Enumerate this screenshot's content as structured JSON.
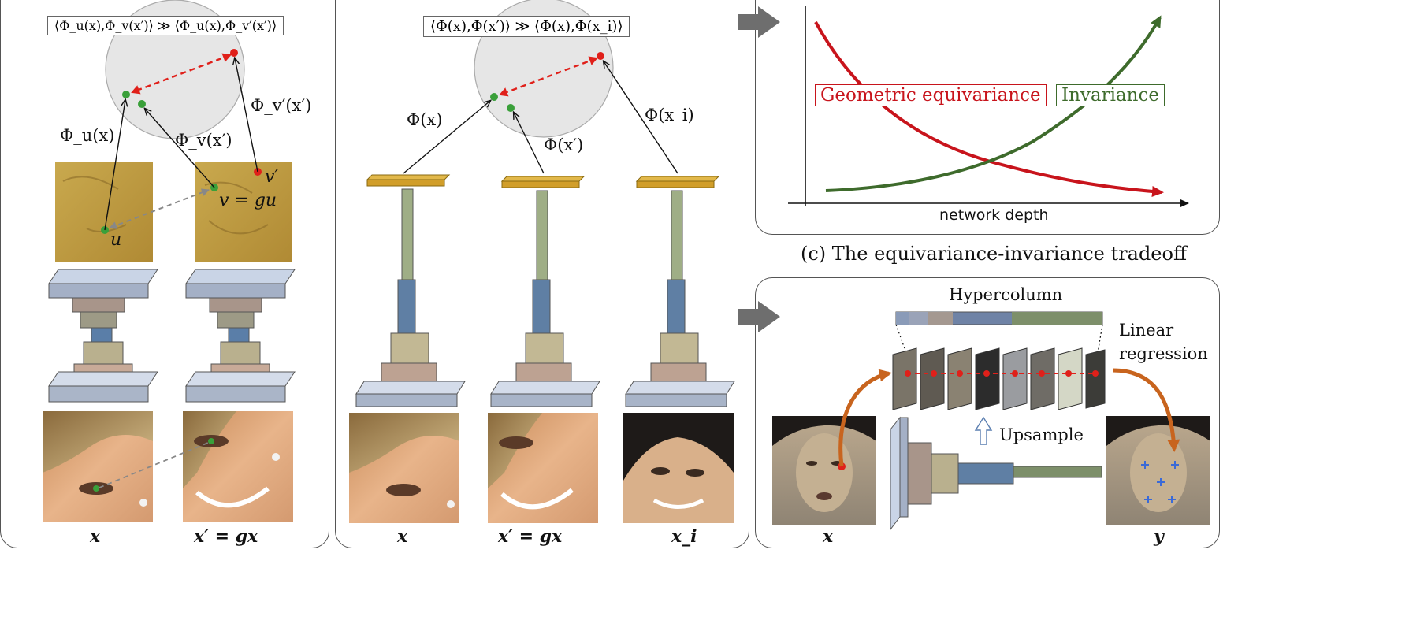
{
  "panel_a": {
    "equation": "⟨Φ_u(x),Φ_v(x′)⟩ ≫ ⟨Φ_u(x),Φ_v′(x′)⟩",
    "feature_labels": {
      "phi_u_x": "Φ_u(x)",
      "phi_v_xp": "Φ_v(x′)",
      "phi_vp_xp": "Φ_v′(x′)"
    },
    "point_labels": {
      "u": "u",
      "v": "v = gu",
      "vp": "v′"
    },
    "image_labels": {
      "left": "x",
      "right": "x′ = gx"
    }
  },
  "panel_b": {
    "equation": "⟨Φ(x),Φ(x′)⟩ ≫ ⟨Φ(x),Φ(x_i)⟩",
    "feature_labels": {
      "phi_x": "Φ(x)",
      "phi_xp": "Φ(x′)",
      "phi_xi": "Φ(x_i)"
    },
    "image_labels": {
      "left": "x",
      "middle": "x′ = gx",
      "right": "x_i"
    }
  },
  "panel_c": {
    "caption": "(c) The equivariance-invariance tradeoff",
    "xlabel": "network depth",
    "curve_labels": {
      "equivariance": "Geometric equivariance",
      "invariance": "Invariance"
    },
    "colors": {
      "equivariance": "#c8141c",
      "invariance": "#3e6b2c"
    }
  },
  "panel_d": {
    "hypercolumn": "Hypercolumn",
    "regression": "Linear\nregression",
    "upsample": "Upsample",
    "input_label": "x",
    "output_label": "y"
  },
  "colors": {
    "point_green": "#3aa03a",
    "point_red": "#e0201a",
    "arrow_orange": "#c8641e",
    "block_gray": "#6e6e6e"
  }
}
